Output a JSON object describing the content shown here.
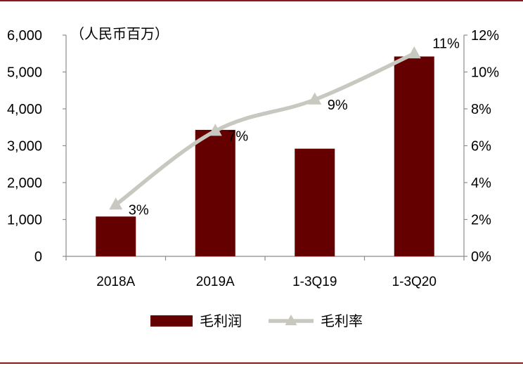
{
  "chart_data": {
    "type": "bar+line",
    "unit_label": "（人民币百万）",
    "categories": [
      "2018A",
      "2019A",
      "1-3Q19",
      "1-3Q20"
    ],
    "series": [
      {
        "name": "毛利润",
        "type": "bar",
        "axis": "left",
        "color": "#650000",
        "values": [
          1080,
          3430,
          2920,
          5420
        ]
      },
      {
        "name": "毛利率",
        "type": "line",
        "axis": "right",
        "color": "#c8c8c0",
        "values": [
          2.8,
          6.8,
          8.5,
          11.0
        ],
        "labels": [
          "3%",
          "7%",
          "9%",
          "11%"
        ]
      }
    ],
    "left_axis": {
      "min": 0,
      "max": 6000,
      "ticks": [
        0,
        1000,
        2000,
        3000,
        4000,
        5000,
        6000
      ],
      "tick_labels": [
        "0",
        "1,000",
        "2,000",
        "3,000",
        "4,000",
        "5,000",
        "6,000"
      ]
    },
    "right_axis": {
      "min": 0,
      "max": 12,
      "ticks": [
        0,
        2,
        4,
        6,
        8,
        10,
        12
      ],
      "tick_labels": [
        "0%",
        "2%",
        "4%",
        "6%",
        "8%",
        "10%",
        "12%"
      ]
    },
    "grid": false,
    "legend_position": "bottom",
    "frame_color": "#8b1a1a"
  }
}
